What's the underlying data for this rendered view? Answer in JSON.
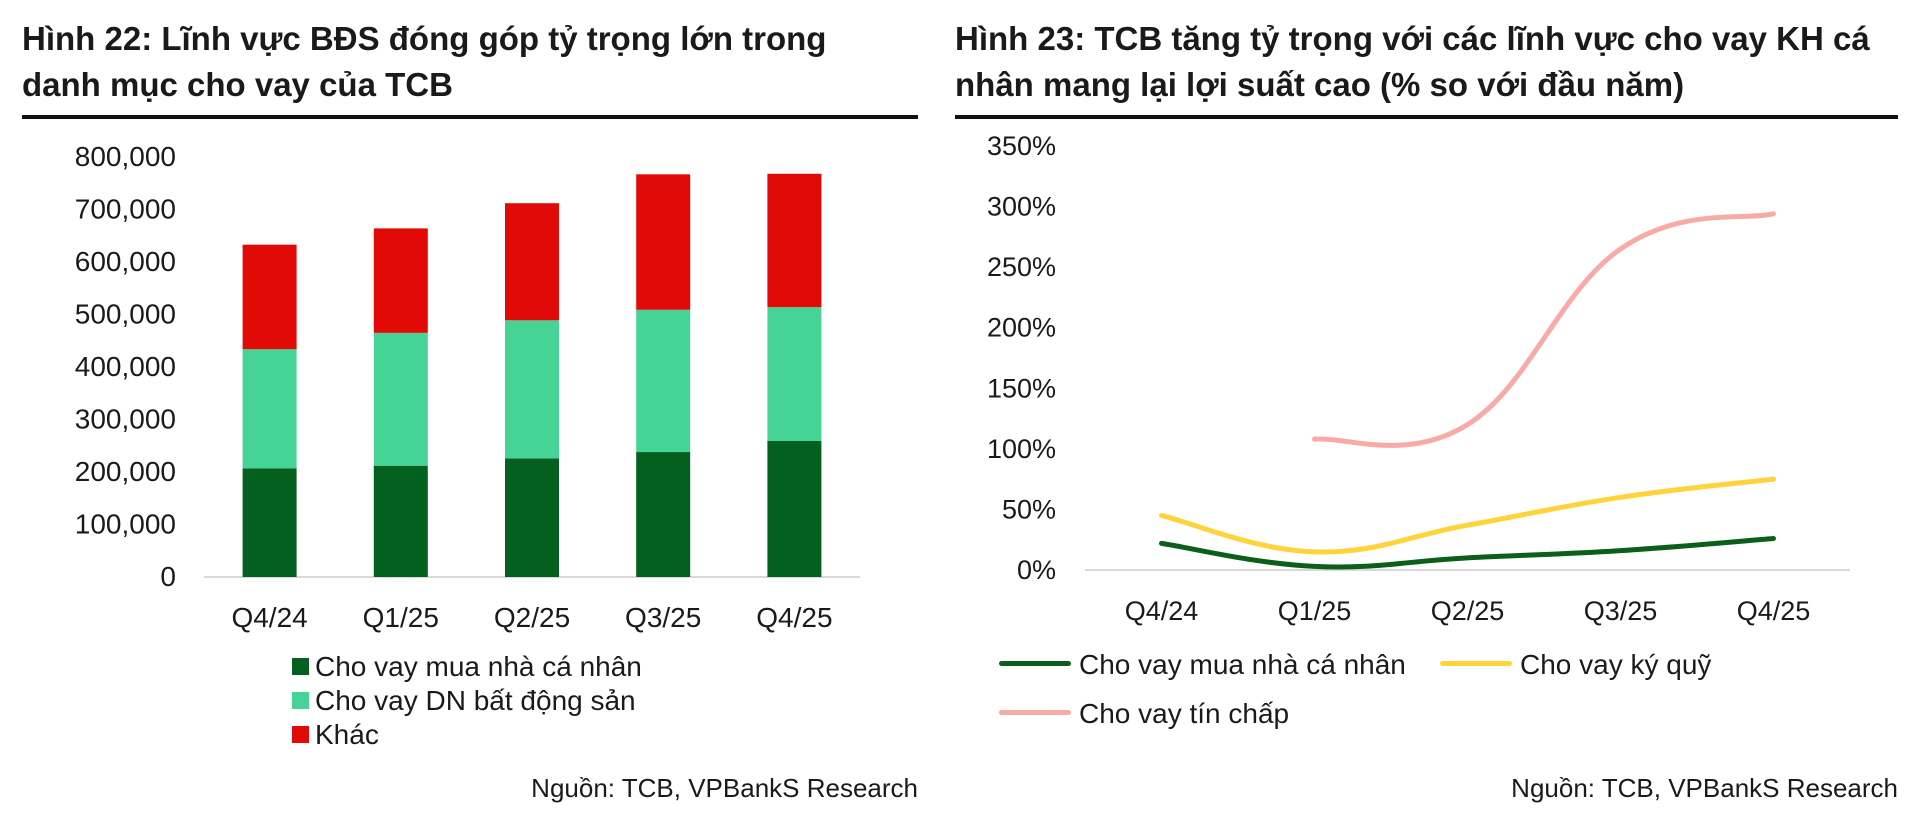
{
  "left": {
    "title_line1": "Hình 22: Lĩnh vực BĐS đóng góp tỷ trọng lớn trong",
    "title_line2": "danh mục cho vay của TCB",
    "source": "Nguồn: TCB, VPBankS Research"
  },
  "right": {
    "title_line1": "Hình 23: TCB tăng tỷ trọng với các lĩnh vực cho vay KH cá",
    "title_line2": "nhân mang lại lợi suất cao (% so với đầu năm)",
    "source": "Nguồn: TCB, VPBankS Research"
  },
  "chart_data": [
    {
      "type": "bar",
      "stacked": true,
      "title": "Hình 22: Lĩnh vực BĐS đóng góp tỷ trọng lớn trong danh mục cho vay của TCB",
      "categories": [
        "Q4/24",
        "Q1/25",
        "Q2/25",
        "Q3/25",
        "Q4/25"
      ],
      "ylim": [
        0,
        800000
      ],
      "yticks": [
        0,
        100000,
        200000,
        300000,
        400000,
        500000,
        600000,
        700000,
        800000
      ],
      "ytick_labels": [
        "0",
        "100,000",
        "200,000",
        "300,000",
        "400,000",
        "500,000",
        "600,000",
        "700,000",
        "800,000"
      ],
      "gridlines": false,
      "legend_position": "bottom",
      "series": [
        {
          "name": "Cho vay mua nhà cá nhân",
          "color": "#04601e",
          "values": [
            207000,
            212000,
            226000,
            238000,
            259000
          ]
        },
        {
          "name": "Cho vay DN bất động sản",
          "color": "#45d396",
          "values": [
            227000,
            253000,
            263000,
            271000,
            255000
          ]
        },
        {
          "name": "Khác",
          "color": "#e20a07",
          "values": [
            199000,
            199000,
            223000,
            258000,
            254000
          ]
        }
      ]
    },
    {
      "type": "line",
      "title": "Hình 23: TCB tăng tỷ trọng với các lĩnh vực cho vay KH cá nhân mang lại lợi suất cao (% so với đầu năm)",
      "categories": [
        "Q4/24",
        "Q1/25",
        "Q2/25",
        "Q3/25",
        "Q4/25"
      ],
      "ylim": [
        0,
        350
      ],
      "yticks": [
        0,
        50,
        100,
        150,
        200,
        250,
        300,
        350
      ],
      "ytick_labels": [
        "0%",
        "50%",
        "100%",
        "150%",
        "200%",
        "250%",
        "300%",
        "350%"
      ],
      "ylabel": "%",
      "gridlines": false,
      "legend_position": "bottom",
      "series": [
        {
          "name": "Cho vay mua nhà cá nhân",
          "color": "#0b5e1c",
          "values": [
            22,
            3,
            10,
            16,
            26
          ]
        },
        {
          "name": "Cho vay ký quỹ",
          "color": "#ffd43b",
          "values": [
            45,
            15,
            37,
            60,
            75
          ]
        },
        {
          "name": "Cho vay tín chấp",
          "color": "#f8aaa4",
          "values": [
            null,
            108,
            120,
            265,
            294
          ]
        }
      ]
    }
  ]
}
